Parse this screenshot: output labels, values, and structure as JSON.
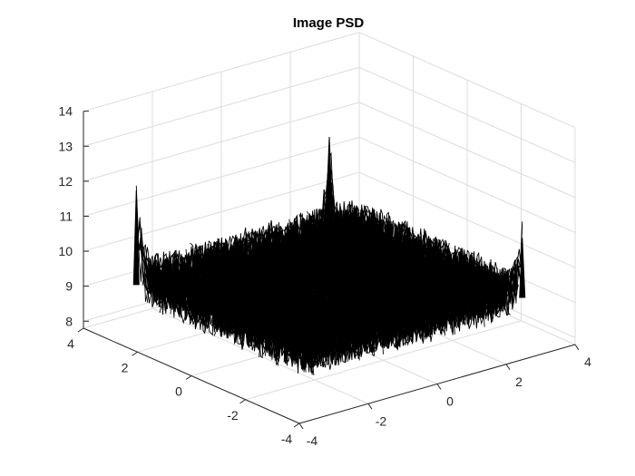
{
  "chart_data": {
    "type": "surface-3d",
    "title": "Image PSD",
    "xlabel": "",
    "ylabel": "",
    "zlabel": "",
    "xlim": [
      -4,
      4
    ],
    "ylim": [
      -4,
      4
    ],
    "zlim": [
      7.8,
      14
    ],
    "x_ticks": [
      "-4",
      "-2",
      "0",
      "2",
      "4"
    ],
    "x_tick_values": [
      -4,
      -2,
      0,
      2,
      4
    ],
    "y_ticks": [
      "-4",
      "-2",
      "0",
      "2",
      "4"
    ],
    "y_tick_values": [
      -4,
      -2,
      0,
      2,
      4
    ],
    "z_ticks": [
      "8",
      "9",
      "10",
      "11",
      "12",
      "13",
      "14"
    ],
    "z_tick_values": [
      8,
      9,
      10,
      11,
      12,
      13,
      14
    ],
    "grid": true,
    "surface_color": "#000000",
    "baseline_level": 9.2,
    "noise_amplitude": 0.8,
    "peaks": [
      {
        "at": "center (0,0)",
        "z": 13.5
      },
      {
        "at": "corner (-pi,-pi) left",
        "z": 11.8
      },
      {
        "at": "corner (pi,pi) right",
        "z": 10.8
      }
    ]
  }
}
